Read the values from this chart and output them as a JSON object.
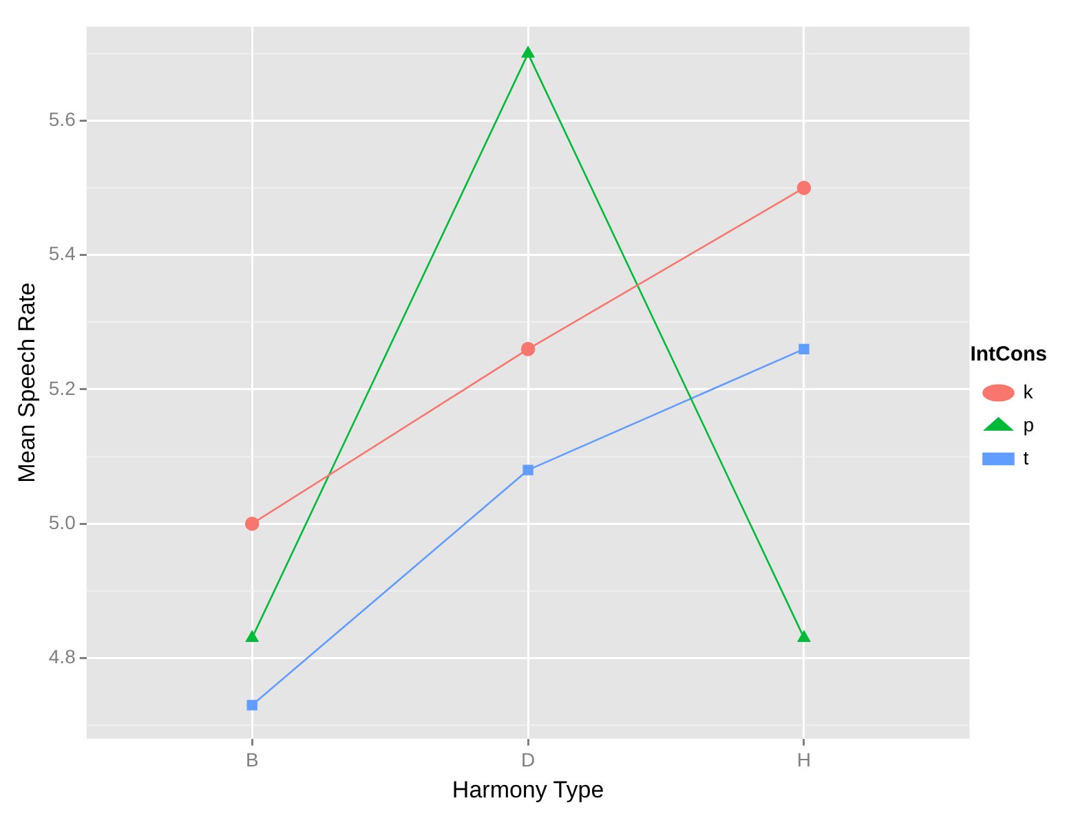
{
  "chart_data": {
    "type": "line",
    "xlabel": "Harmony Type",
    "ylabel": "Mean Speech Rate",
    "legend_title": "IntCons",
    "categories": [
      "B",
      "D",
      "H"
    ],
    "series": [
      {
        "name": "k",
        "color": "#f8766d",
        "marker": "circle",
        "values": [
          5.0,
          5.26,
          5.5
        ]
      },
      {
        "name": "p",
        "color": "#00ba38",
        "marker": "triangle",
        "values": [
          4.83,
          5.7,
          4.83
        ]
      },
      {
        "name": "t",
        "color": "#619cff",
        "marker": "square",
        "values": [
          4.73,
          5.08,
          5.26
        ]
      }
    ],
    "ylim": [
      4.68,
      5.74
    ],
    "yticks": [
      {
        "value": 4.7,
        "label": null
      },
      {
        "value": 4.8,
        "label": "4.8"
      },
      {
        "value": 4.9,
        "label": null
      },
      {
        "value": 5.0,
        "label": "5.0"
      },
      {
        "value": 5.1,
        "label": null
      },
      {
        "value": 5.2,
        "label": "5.2"
      },
      {
        "value": 5.3,
        "label": null
      },
      {
        "value": 5.4,
        "label": "5.4"
      },
      {
        "value": 5.5,
        "label": null
      },
      {
        "value": 5.6,
        "label": "5.6"
      },
      {
        "value": 5.7,
        "label": null
      }
    ],
    "grid": true,
    "legend": "right"
  }
}
